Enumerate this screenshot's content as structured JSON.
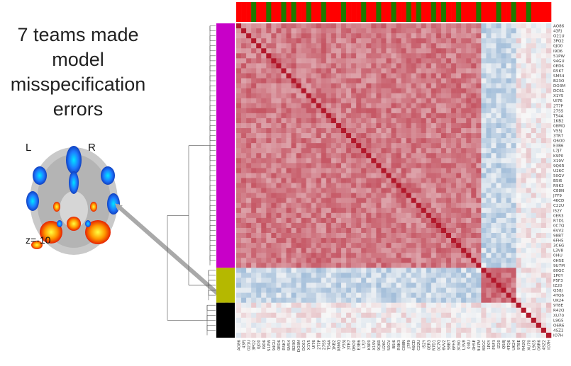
{
  "annotation": {
    "lines": [
      "7 teams made",
      "model",
      "misspecification",
      "errors"
    ]
  },
  "brain": {
    "left_label": "L",
    "right_label": "R",
    "slice_label": "z=-10"
  },
  "colors": {
    "cluster_magenta": "#c800c8",
    "cluster_olive": "#b5b800",
    "cluster_black": "#000000",
    "top_red": "#ff0000",
    "top_green": "#1e7a00",
    "arrow": "#a9a9a9"
  },
  "chart_data": {
    "type": "heatmap",
    "teams": [
      "AO86",
      "43FJ",
      "O21U",
      "3PQ2",
      "0JO0",
      "I9D6",
      "51PW",
      "94GU",
      "0ED6",
      "R5K7",
      "SM54",
      "B23O",
      "DO3M",
      "DC61",
      "X1Y5",
      "UI76",
      "2T7P",
      "27SS",
      "T54A",
      "1KB2",
      "08MQ",
      "V55J",
      "3TR7",
      "Q6O0",
      "E3B6",
      "L7J7",
      "K9P0",
      "X19V",
      "9Q6R",
      "U26C",
      "50GV",
      "B5I6",
      "R9K3",
      "C88N",
      "J7F9",
      "46CD",
      "C22U",
      "I52Y",
      "0ER3",
      "R7D1",
      "0C7Q",
      "6VV2",
      "98BT",
      "6FH5",
      "3C6G",
      "L3V8",
      "0I4U",
      "0H5E",
      "9U7M",
      "80GC",
      "1P0Y",
      "P5F3",
      "IZ20",
      "Q58J",
      "4TQ6",
      "UK24",
      "9T8E",
      "R42Q",
      "XU70",
      "L9G5",
      "O6R6",
      "4SZ2",
      "IO7H"
    ],
    "clusters": [
      {
        "color": "magenta",
        "size": 49
      },
      {
        "color": "olive",
        "size": 7
      },
      {
        "color": "black",
        "size": 7
      }
    ],
    "top_bar": [
      "red",
      "red",
      "red",
      "green",
      "red",
      "red",
      "green",
      "red",
      "red",
      "green",
      "red",
      "green",
      "red",
      "red",
      "green",
      "red",
      "red",
      "green",
      "red",
      "red",
      "red",
      "green",
      "red",
      "red",
      "red",
      "green",
      "red",
      "red",
      "green",
      "red",
      "red",
      "green",
      "red",
      "red",
      "green",
      "red",
      "green",
      "red",
      "red",
      "green",
      "red",
      "green",
      "red",
      "red",
      "green",
      "red",
      "red",
      "red",
      "green",
      "red",
      "red",
      "red",
      "green",
      "red",
      "red",
      "green",
      "red",
      "red",
      "green",
      "red",
      "red",
      "red",
      "red"
    ],
    "value_range": [
      -1,
      1
    ],
    "colormap": "blue-white-red"
  }
}
